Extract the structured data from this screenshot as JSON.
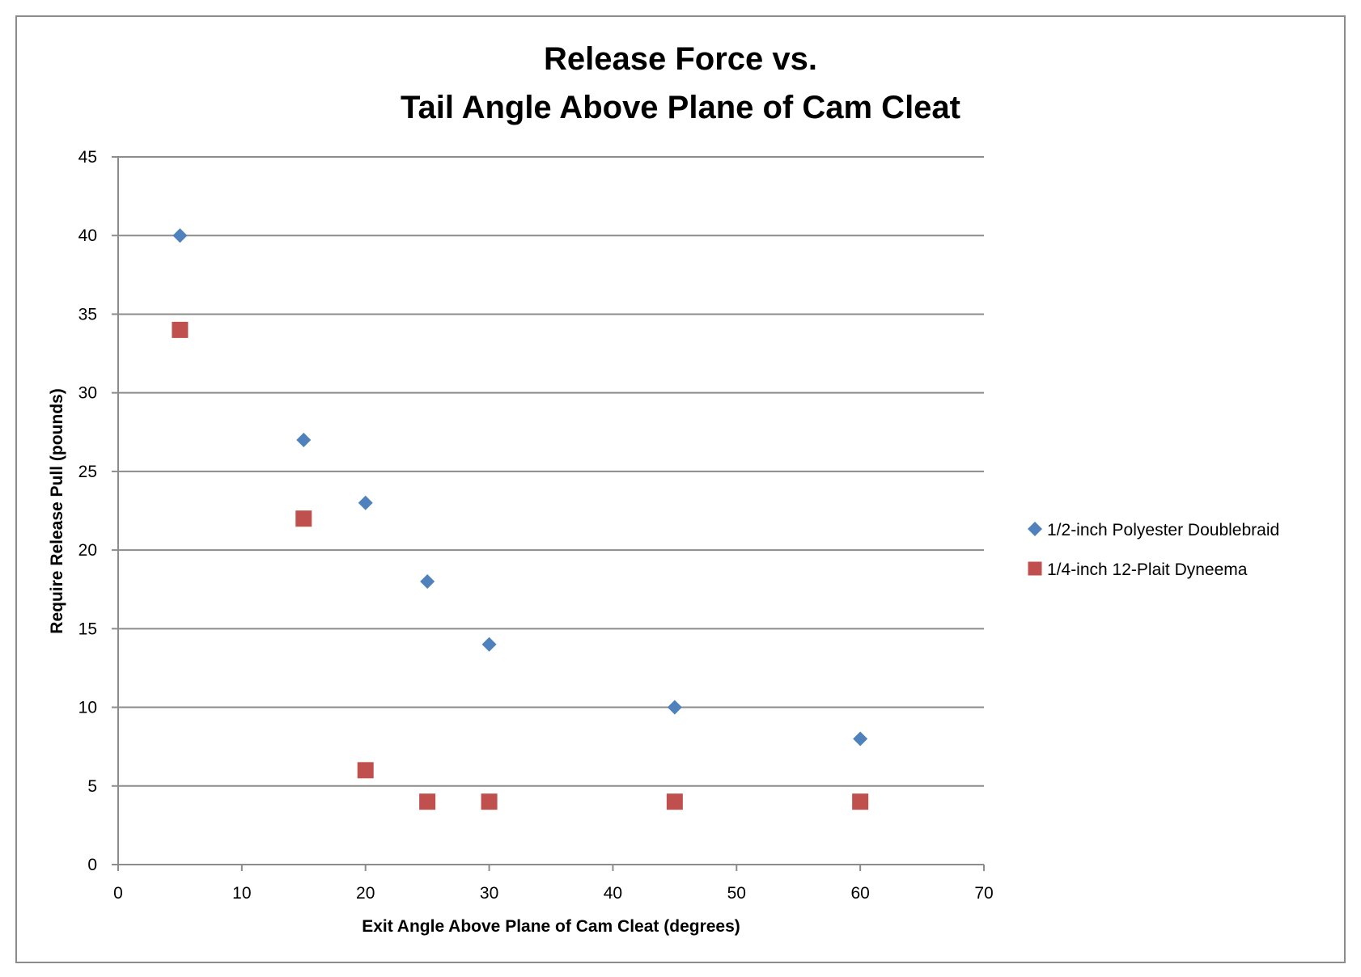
{
  "chart_data": {
    "type": "scatter",
    "title": [
      "Release Force vs.",
      "Tail Angle Above Plane of Cam Cleat"
    ],
    "xlabel": "Exit Angle Above Plane of Cam Cleat (degrees)",
    "ylabel": "Require Release Pull (pounds)",
    "xlim": [
      0,
      70
    ],
    "ylim": [
      0,
      45
    ],
    "xticks": [
      0,
      10,
      20,
      30,
      40,
      50,
      60,
      70
    ],
    "yticks": [
      0,
      5,
      10,
      15,
      20,
      25,
      30,
      35,
      40,
      45
    ],
    "grid": "horizontal",
    "legend": "right",
    "series": [
      {
        "name": "1/2-inch Polyester Doublebraid",
        "marker": "diamond",
        "color": "#4f81bd",
        "x": [
          5,
          15,
          20,
          25,
          30,
          45,
          60
        ],
        "y": [
          40,
          27,
          23,
          18,
          14,
          10,
          8
        ]
      },
      {
        "name": "1/4-inch 12-Plait Dyneema",
        "marker": "square",
        "color": "#c0504d",
        "x": [
          5,
          15,
          20,
          25,
          30,
          45,
          60
        ],
        "y": [
          34,
          22,
          6,
          4,
          4,
          4,
          4
        ]
      }
    ]
  }
}
